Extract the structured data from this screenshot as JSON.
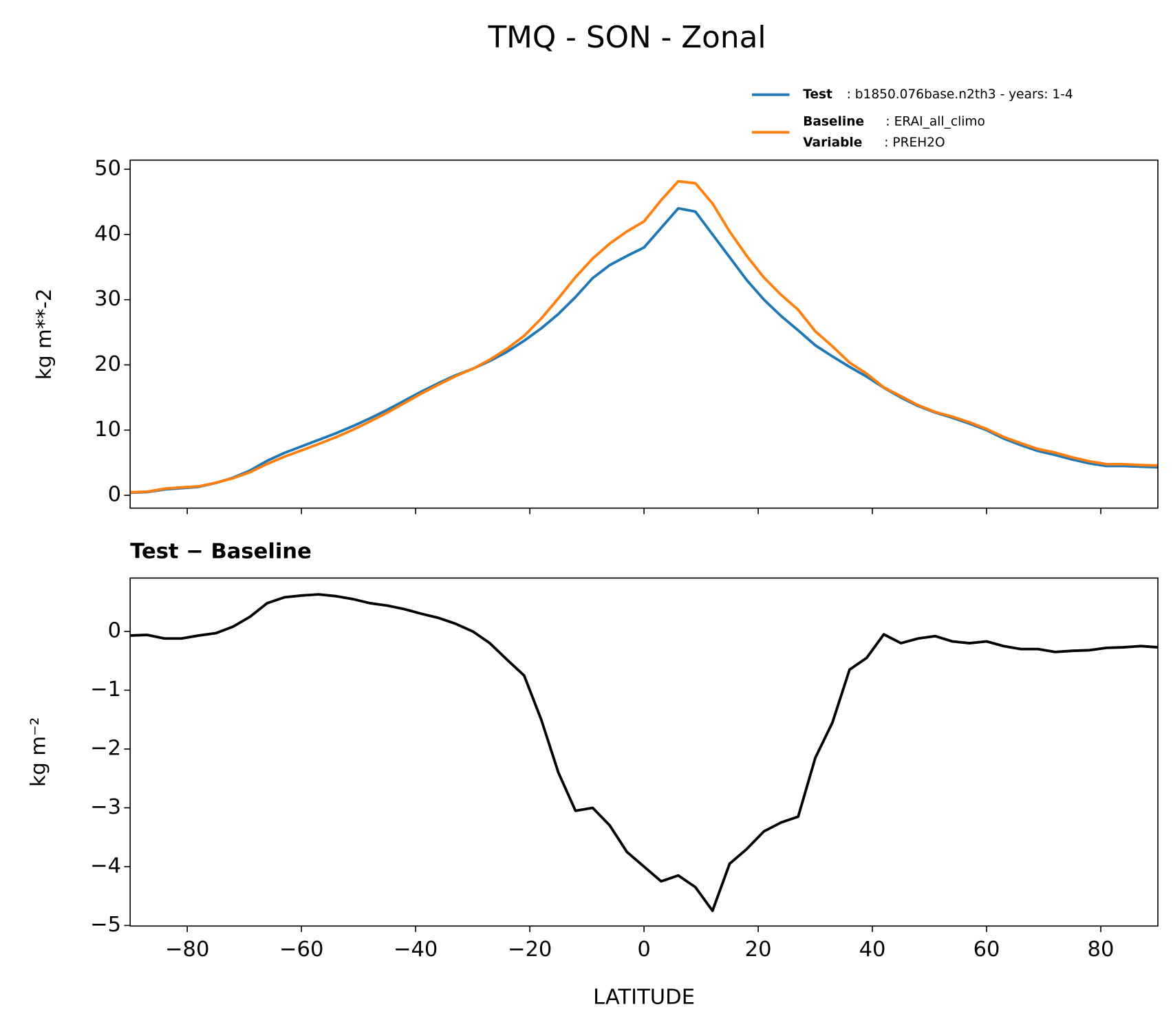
{
  "title": "TMQ - SON - Zonal",
  "legend": [
    {
      "name": "Test",
      "label": ": b1850.076base.n2th3 - years: 1-4"
    },
    {
      "name": "Baseline",
      "label": ": ERAI_all_climo"
    },
    {
      "name": "Variable",
      "label": ": PREH2O"
    }
  ],
  "chart_data": [
    {
      "type": "line",
      "ylabel": "kg m**-2",
      "x": [
        -90,
        -87,
        -84,
        -81,
        -78,
        -75,
        -72,
        -69,
        -66,
        -63,
        -60,
        -57,
        -54,
        -51,
        -48,
        -45,
        -42,
        -39,
        -36,
        -33,
        -30,
        -27,
        -24,
        -21,
        -18,
        -15,
        -12,
        -9,
        -6,
        -3,
        0,
        3,
        6,
        9,
        12,
        15,
        18,
        21,
        24,
        27,
        30,
        33,
        36,
        39,
        42,
        45,
        48,
        51,
        54,
        57,
        60,
        63,
        66,
        69,
        72,
        75,
        78,
        81,
        84,
        87,
        90
      ],
      "series": [
        {
          "name": "Test",
          "color": "#1f77b4",
          "values": [
            0.4,
            0.5,
            0.9,
            1.1,
            1.3,
            1.9,
            2.7,
            3.8,
            5.3,
            6.5,
            7.5,
            8.5,
            9.5,
            10.6,
            11.8,
            13.1,
            14.5,
            15.9,
            17.2,
            18.4,
            19.4,
            20.6,
            22.0,
            23.7,
            25.6,
            27.8,
            30.4,
            33.3,
            35.3,
            36.7,
            38.0,
            41.0,
            44.0,
            43.5,
            40.0,
            36.5,
            33.0,
            30.0,
            27.5,
            25.3,
            23.0,
            21.3,
            19.7,
            18.2,
            16.5,
            15.0,
            13.7,
            12.7,
            11.9,
            11.0,
            10.0,
            8.7,
            7.7,
            6.8,
            6.2,
            5.5,
            4.9,
            4.5,
            4.5,
            4.4,
            4.3
          ]
        },
        {
          "name": "Baseline",
          "color": "#ff7f0e",
          "values": [
            0.47,
            0.56,
            1.02,
            1.22,
            1.37,
            1.93,
            2.62,
            3.55,
            4.82,
            5.92,
            6.89,
            7.87,
            8.9,
            10.05,
            11.32,
            12.66,
            14.12,
            15.6,
            16.97,
            18.27,
            19.4,
            20.8,
            22.48,
            24.45,
            27.1,
            30.2,
            33.45,
            36.3,
            38.6,
            40.45,
            42.0,
            45.25,
            48.15,
            47.85,
            44.75,
            40.45,
            36.7,
            33.4,
            30.75,
            28.45,
            25.15,
            22.85,
            20.35,
            18.65,
            16.55,
            15.2,
            13.82,
            12.78,
            12.07,
            11.2,
            10.17,
            8.95,
            8.0,
            7.1,
            6.55,
            5.83,
            5.22,
            4.78,
            4.77,
            4.65,
            4.57
          ]
        }
      ],
      "xlim": [
        -90,
        90
      ],
      "xticks": [
        -80,
        -60,
        -40,
        -20,
        0,
        20,
        40,
        60,
        80
      ],
      "show_xticklabels": false,
      "ylim": [
        -1.96,
        51.4
      ],
      "yticks": [
        0,
        10,
        20,
        30,
        40,
        50
      ]
    },
    {
      "type": "line",
      "title": "Test − Baseline",
      "xlabel": "LATITUDE",
      "ylabel": "kg m⁻²",
      "x": [
        -90,
        -87,
        -84,
        -81,
        -78,
        -75,
        -72,
        -69,
        -66,
        -63,
        -60,
        -57,
        -54,
        -51,
        -48,
        -45,
        -42,
        -39,
        -36,
        -33,
        -30,
        -27,
        -24,
        -21,
        -18,
        -15,
        -12,
        -9,
        -6,
        -3,
        0,
        3,
        6,
        9,
        12,
        15,
        18,
        21,
        24,
        27,
        30,
        33,
        36,
        39,
        42,
        45,
        48,
        51,
        54,
        57,
        60,
        63,
        66,
        69,
        72,
        75,
        78,
        81,
        84,
        87,
        90
      ],
      "series": [
        {
          "name": "Test − Baseline",
          "color": "#000000",
          "values": [
            -0.07,
            -0.06,
            -0.12,
            -0.12,
            -0.07,
            -0.03,
            0.08,
            0.25,
            0.48,
            0.58,
            0.61,
            0.63,
            0.6,
            0.55,
            0.48,
            0.44,
            0.38,
            0.3,
            0.23,
            0.13,
            0.0,
            -0.2,
            -0.48,
            -0.75,
            -1.5,
            -2.4,
            -3.05,
            -3.0,
            -3.3,
            -3.75,
            -4.0,
            -4.25,
            -4.15,
            -4.35,
            -4.75,
            -3.95,
            -3.7,
            -3.4,
            -3.25,
            -3.15,
            -2.15,
            -1.55,
            -0.65,
            -0.45,
            -0.05,
            -0.2,
            -0.12,
            -0.08,
            -0.17,
            -0.2,
            -0.17,
            -0.25,
            -0.3,
            -0.3,
            -0.35,
            -0.33,
            -0.32,
            -0.28,
            -0.27,
            -0.25,
            -0.27
          ]
        }
      ],
      "xlim": [
        -90,
        90
      ],
      "xticks": [
        {
          "value": -80,
          "label": "−80"
        },
        {
          "value": -60,
          "label": "−60"
        },
        {
          "value": -40,
          "label": "−40"
        },
        {
          "value": -20,
          "label": "−20"
        },
        0,
        20,
        40,
        60,
        80
      ],
      "show_xticklabels": true,
      "ylim": [
        -5.01,
        0.908
      ],
      "yticks": [
        {
          "value": -5,
          "label": "−5"
        },
        {
          "value": -4,
          "label": "−4"
        },
        {
          "value": -3,
          "label": "−3"
        },
        {
          "value": -2,
          "label": "−2"
        },
        {
          "value": -1,
          "label": "−1"
        },
        0
      ]
    }
  ]
}
